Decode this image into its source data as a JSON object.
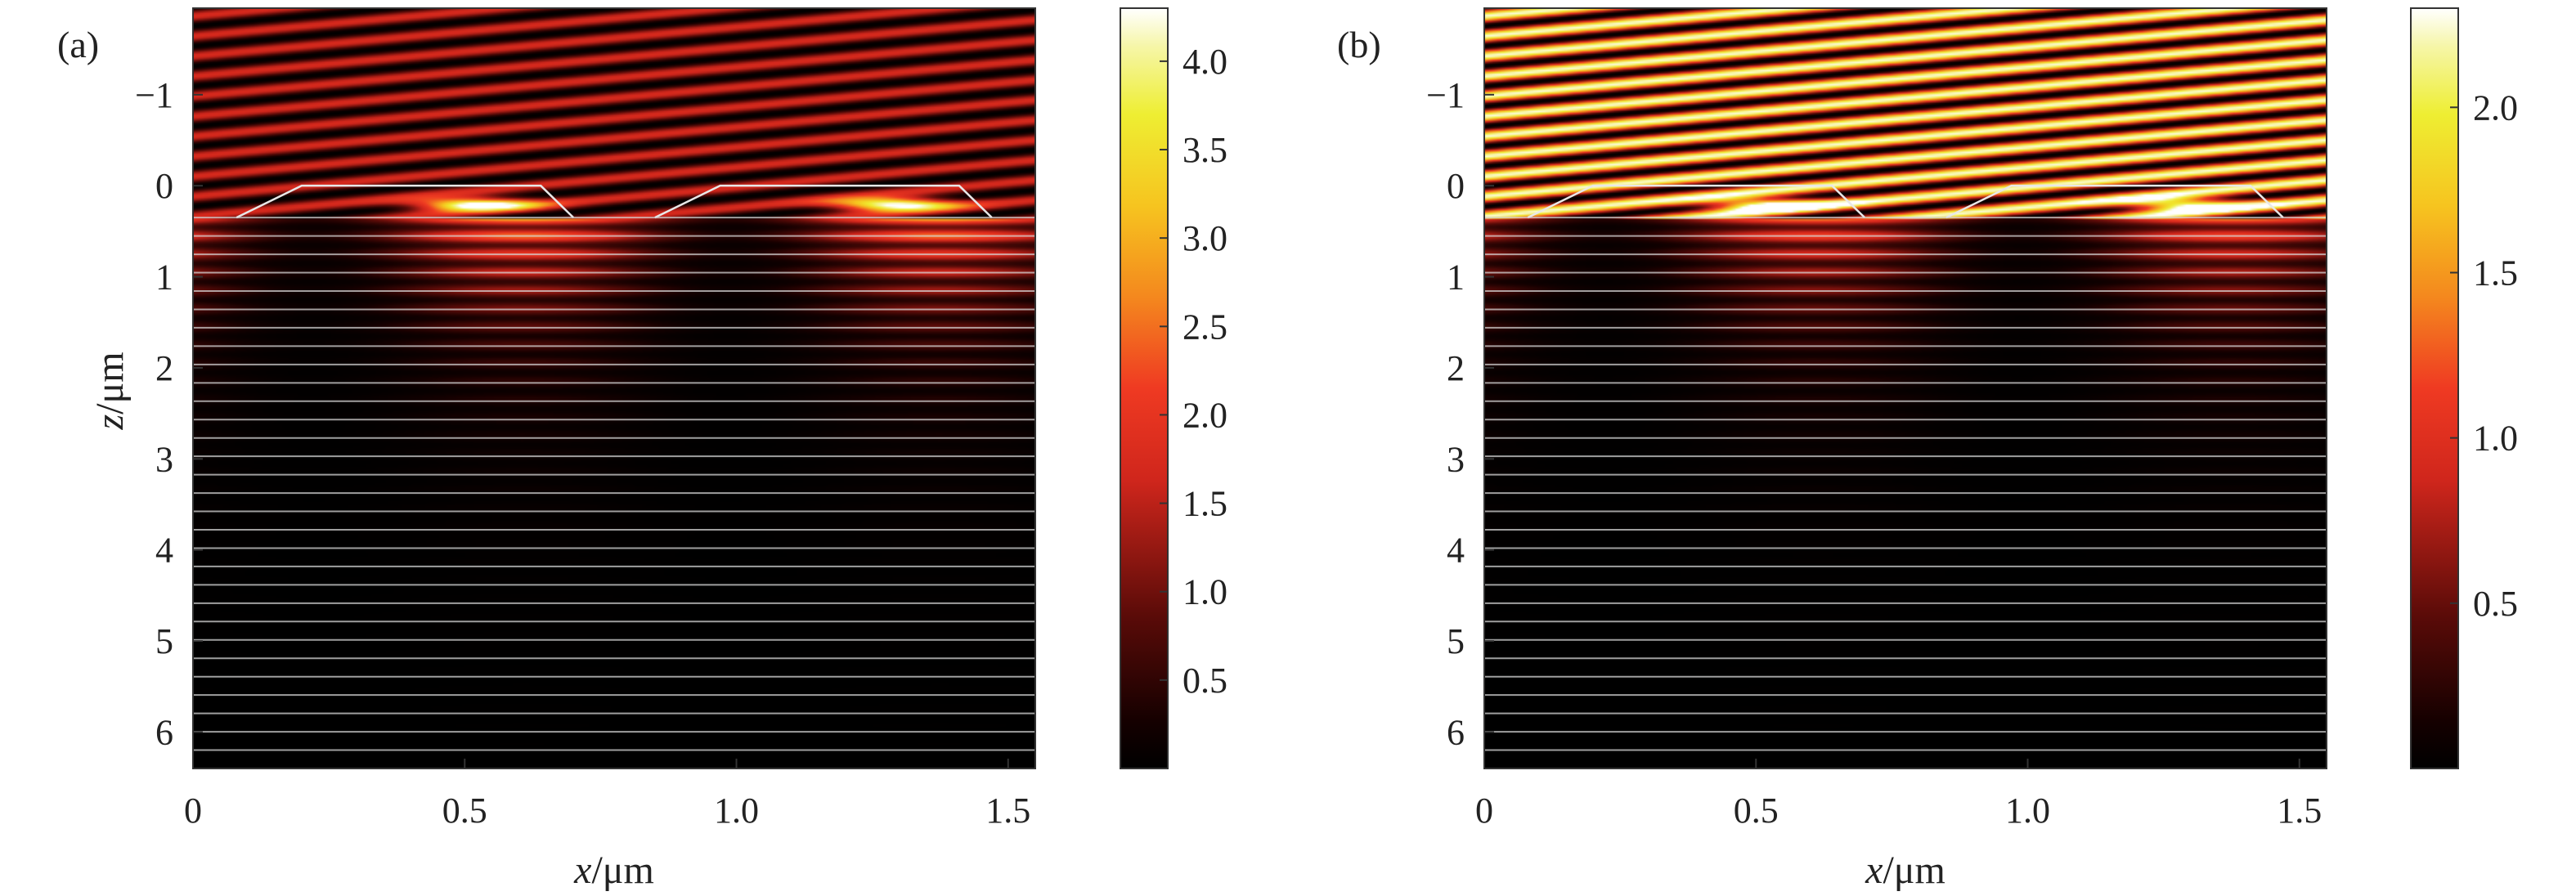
{
  "chart_data": [
    {
      "type": "heatmap",
      "panel_label": "(a)",
      "xlabel_var": "x",
      "xlabel_unit": "/μm",
      "ylabel_var": "z",
      "ylabel_unit": "/μm",
      "xlim": [
        0,
        1.55
      ],
      "ylim": [
        -1.95,
        6.4
      ],
      "y_inverted": true,
      "x_ticks": [
        0,
        0.5,
        1.0,
        1.5
      ],
      "x_tick_labels": [
        "0",
        "0.5",
        "1.0",
        "1.5"
      ],
      "y_ticks": [
        -1,
        0,
        1,
        2,
        3,
        4,
        5,
        6
      ],
      "y_tick_labels": [
        "−1",
        "0",
        "1",
        "2",
        "3",
        "4",
        "5",
        "6"
      ],
      "colorbar": {
        "range": [
          0,
          4.3
        ],
        "ticks": [
          0.5,
          1.0,
          1.5,
          2.0,
          2.5,
          3.0,
          3.5,
          4.0
        ],
        "tick_labels": [
          "0.5",
          "1.0",
          "1.5",
          "2.0",
          "2.5",
          "3.0",
          "3.5",
          "4.0"
        ],
        "colormap": "hot"
      },
      "incident_wave_amplitude": 1.75,
      "hotspot_peak": 4.3,
      "grating": {
        "period": 0.77,
        "ridge_top_z": 0.0,
        "ridge_bottom_z": 0.35
      },
      "multilayer": {
        "z_start": 0.35,
        "z_end": 6.4,
        "layer_count": 30
      }
    },
    {
      "type": "heatmap",
      "panel_label": "(b)",
      "xlabel_var": "x",
      "xlabel_unit": "/μm",
      "xlim": [
        0,
        1.55
      ],
      "ylim": [
        -1.95,
        6.4
      ],
      "y_inverted": true,
      "x_ticks": [
        0,
        0.5,
        1.0,
        1.5
      ],
      "x_tick_labels": [
        "0",
        "0.5",
        "1.0",
        "1.5"
      ],
      "y_ticks": [
        -1,
        0,
        1,
        2,
        3,
        4,
        5,
        6
      ],
      "y_tick_labels": [
        "−1",
        "0",
        "1",
        "2",
        "3",
        "4",
        "5",
        "6"
      ],
      "colorbar": {
        "range": [
          0,
          2.3
        ],
        "ticks": [
          0.5,
          1.0,
          1.5,
          2.0
        ],
        "tick_labels": [
          "0.5",
          "1.0",
          "1.5",
          "2.0"
        ],
        "colormap": "hot"
      },
      "incident_wave_amplitude": 2.25,
      "hotspot_peak": 2.0,
      "grating": {
        "period": 0.77,
        "ridge_top_z": 0.0,
        "ridge_bottom_z": 0.35
      },
      "multilayer": {
        "z_start": 0.35,
        "z_end": 6.4,
        "layer_count": 30
      }
    }
  ]
}
